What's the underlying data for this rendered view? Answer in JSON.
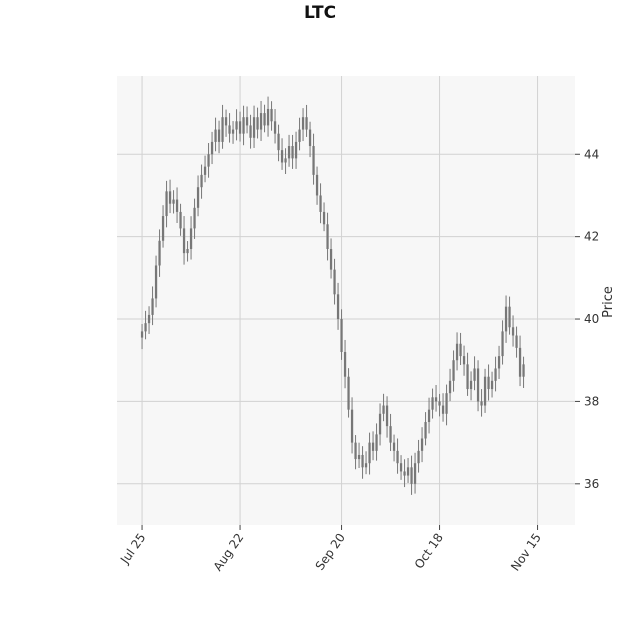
{
  "chart_data": {
    "type": "candlestick",
    "title": "LTC",
    "xlabel": "",
    "ylabel": "Price",
    "y_axis_side": "right",
    "ylim": [
      35.0,
      45.9
    ],
    "y_ticks": [
      36,
      38,
      40,
      42,
      44
    ],
    "y_tick_labels": [
      "36",
      "38",
      "40",
      "42",
      "44"
    ],
    "x_tick_labels": [
      "Jul 25",
      "Aug 22",
      "Sep 20",
      "Oct 18",
      "Nov 15"
    ],
    "x_tick_dates": [
      "2021-07-25",
      "2021-08-22",
      "2021-09-20",
      "2021-10-18",
      "2021-11-15"
    ],
    "grid": true,
    "colors": {
      "background": "#f7f7f7",
      "grid": "#d2d2d2",
      "candle": "#777777"
    },
    "close": [
      39.7,
      39.9,
      40.1,
      40.5,
      41.3,
      41.9,
      42.5,
      43.1,
      42.8,
      42.9,
      42.6,
      42.2,
      41.6,
      41.7,
      42.2,
      42.7,
      43.2,
      43.5,
      43.7,
      44.0,
      44.3,
      44.6,
      44.3,
      44.9,
      44.7,
      44.5,
      44.6,
      44.8,
      44.5,
      44.9,
      44.7,
      44.4,
      44.9,
      44.6,
      45.0,
      44.7,
      45.1,
      44.8,
      44.5,
      44.1,
      43.8,
      43.9,
      44.2,
      43.9,
      44.3,
      44.6,
      44.9,
      44.6,
      44.2,
      43.5,
      43.0,
      42.6,
      42.3,
      41.7,
      41.2,
      40.6,
      40.0,
      39.2,
      38.6,
      37.8,
      37.0,
      36.6,
      36.7,
      36.4,
      36.5,
      37.0,
      36.8,
      37.2,
      37.7,
      37.9,
      37.4,
      37.0,
      36.8,
      36.5,
      36.3,
      36.2,
      36.4,
      36.0,
      36.5,
      36.8,
      37.1,
      37.5,
      37.8,
      38.1,
      38.0,
      37.9,
      37.7,
      38.2,
      38.5,
      39.0,
      39.4,
      39.1,
      38.9,
      38.3,
      38.5,
      38.8,
      38.0,
      37.9,
      38.6,
      38.3,
      38.5,
      38.8,
      39.1,
      39.7,
      40.3,
      39.8,
      39.6,
      39.3,
      38.6,
      38.9
    ]
  }
}
